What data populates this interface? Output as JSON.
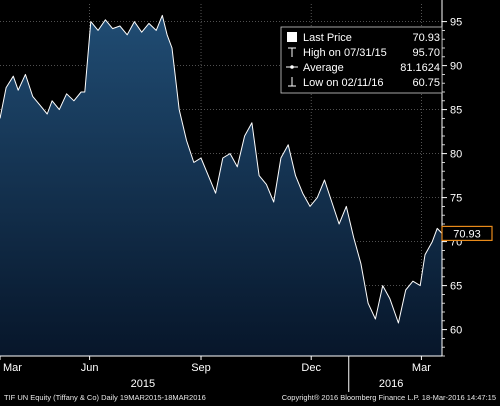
{
  "chart_data": {
    "type": "area",
    "ylim": [
      57,
      97
    ],
    "y_ticks": [
      60,
      65,
      70,
      75,
      80,
      85,
      90,
      95
    ],
    "y_tick_labels": [
      "60",
      "65",
      "70",
      "75",
      "80",
      "85",
      "90",
      "95"
    ],
    "x_range": [
      "2015-03-19",
      "2016-03-18"
    ],
    "x_ticks": [
      {
        "label": "Mar",
        "date": "2015-03-19"
      },
      {
        "label": "Jun",
        "date": "2015-06-01"
      },
      {
        "label": "Sep",
        "date": "2015-09-01"
      },
      {
        "label": "Dec",
        "date": "2015-12-01"
      },
      {
        "label": "Mar",
        "date": "2016-03-01"
      }
    ],
    "year_labels": [
      {
        "label": "2015",
        "date": "2015-07-15"
      },
      {
        "label": "2016",
        "date": "2016-02-05"
      }
    ],
    "year_divider": "2016-01-01",
    "grid": true,
    "legend_position": "top-right",
    "legend": [
      {
        "icon": "square",
        "name": "Last Price",
        "value": "70.93"
      },
      {
        "icon": "high",
        "name": "High on 07/31/15",
        "value": "95.70"
      },
      {
        "icon": "average",
        "name": "Average",
        "value": "81.1624"
      },
      {
        "icon": "low",
        "name": "Low on 02/11/16",
        "value": "60.75"
      }
    ],
    "last_price_label": "70.93",
    "last_price": 70.93,
    "series": [
      {
        "x": [
          "2015-03-19",
          "2015-03-24",
          "2015-03-30",
          "2015-04-03",
          "2015-04-09",
          "2015-04-15",
          "2015-04-21",
          "2015-04-27",
          "2015-05-01",
          "2015-05-07",
          "2015-05-13",
          "2015-05-19",
          "2015-05-25",
          "2015-05-28",
          "2015-06-02",
          "2015-06-08",
          "2015-06-14",
          "2015-06-20",
          "2015-06-26",
          "2015-07-02",
          "2015-07-08",
          "2015-07-14",
          "2015-07-20",
          "2015-07-26",
          "2015-07-31",
          "2015-08-04",
          "2015-08-08",
          "2015-08-14",
          "2015-08-20",
          "2015-08-26",
          "2015-09-01",
          "2015-09-07",
          "2015-09-13",
          "2015-09-19",
          "2015-09-25",
          "2015-10-01",
          "2015-10-07",
          "2015-10-13",
          "2015-10-19",
          "2015-10-25",
          "2015-10-31",
          "2015-11-06",
          "2015-11-12",
          "2015-11-18",
          "2015-11-24",
          "2015-11-30",
          "2015-12-06",
          "2015-12-12",
          "2015-12-18",
          "2015-12-24",
          "2015-12-30",
          "2016-01-05",
          "2016-01-11",
          "2016-01-17",
          "2016-01-23",
          "2016-01-29",
          "2016-02-04",
          "2016-02-11",
          "2016-02-17",
          "2016-02-23",
          "2016-02-29",
          "2016-03-04",
          "2016-03-10",
          "2016-03-14",
          "2016-03-18"
        ],
        "y": [
          84.0,
          87.5,
          88.8,
          87.2,
          89.0,
          86.5,
          85.5,
          84.5,
          86.0,
          85.0,
          86.8,
          86.0,
          87.0,
          87.0,
          95.0,
          94.0,
          95.2,
          94.2,
          94.5,
          93.5,
          95.0,
          93.8,
          94.8,
          94.0,
          95.7,
          93.5,
          92.0,
          85.0,
          81.5,
          79.0,
          79.5,
          77.5,
          75.5,
          79.5,
          80.0,
          78.5,
          82.0,
          83.5,
          77.5,
          76.5,
          74.5,
          79.5,
          81.0,
          77.5,
          75.5,
          74.0,
          75.0,
          77.0,
          74.5,
          72.0,
          74.0,
          70.5,
          67.5,
          63.0,
          61.2,
          65.0,
          63.5,
          60.75,
          64.5,
          65.5,
          65.0,
          68.5,
          70.0,
          71.5,
          70.93
        ]
      }
    ]
  },
  "footer": {
    "left": "TIF UN Equity (Tiffany & Co)  Daily 19MAR2015-18MAR2016",
    "right": "Copyright® 2016 Bloomberg Finance L.P.    18-Mar-2016 14:47:15"
  },
  "colors": {
    "background": "#000000",
    "area_top": "#204c73",
    "area_bottom": "#07162a",
    "line": "#ffffff",
    "grid": "#6a6a6a",
    "price_tag": "#e88a1a",
    "legend_bg": "#000000",
    "legend_border": "#cfcfcf"
  }
}
